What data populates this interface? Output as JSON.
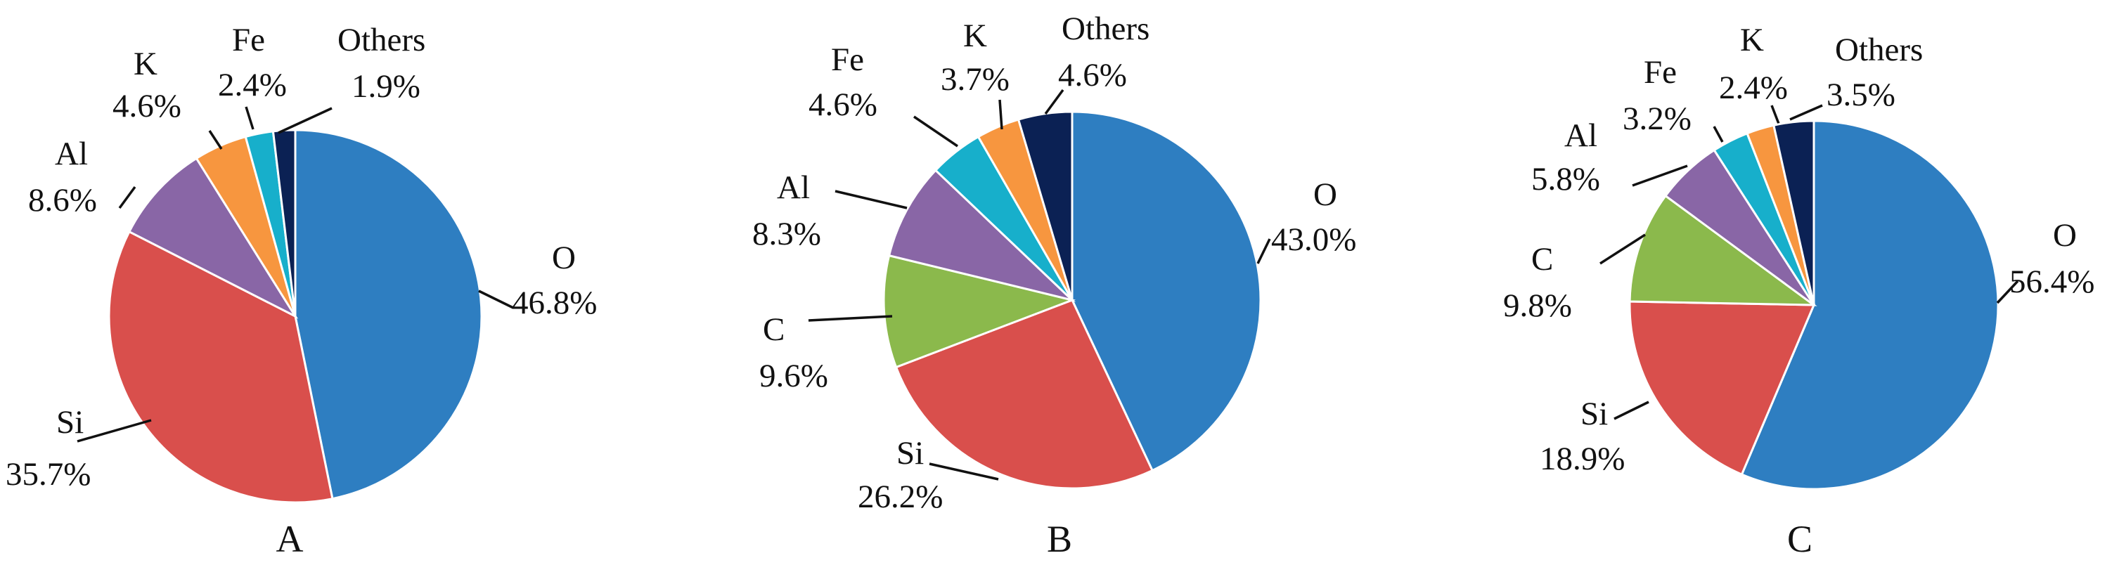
{
  "chart_data": [
    {
      "type": "pie",
      "label": "A",
      "slices": [
        {
          "name": "O",
          "value": 46.8,
          "text": "46.8%",
          "color": "#2E7EC1"
        },
        {
          "name": "Si",
          "value": 35.7,
          "text": "35.7%",
          "color": "#D94F4C"
        },
        {
          "name": "Al",
          "value": 8.6,
          "text": "8.6%",
          "color": "#8966A6"
        },
        {
          "name": "K",
          "value": 4.6,
          "text": "4.6%",
          "color": "#F7963F"
        },
        {
          "name": "Fe",
          "value": 2.4,
          "text": "2.4%",
          "color": "#17AFCB"
        },
        {
          "name": "Others",
          "value": 1.9,
          "text": "1.9%",
          "color": "#0B2154"
        }
      ]
    },
    {
      "type": "pie",
      "label": "B",
      "slices": [
        {
          "name": "O",
          "value": 43.0,
          "text": "43.0%",
          "color": "#2E7EC1"
        },
        {
          "name": "Si",
          "value": 26.2,
          "text": "26.2%",
          "color": "#D94F4C"
        },
        {
          "name": "C",
          "value": 9.6,
          "text": "9.6%",
          "color": "#8BB94C"
        },
        {
          "name": "Al",
          "value": 8.3,
          "text": "8.3%",
          "color": "#8966A6"
        },
        {
          "name": "Fe",
          "value": 4.6,
          "text": "4.6%",
          "color": "#17AFCB"
        },
        {
          "name": "K",
          "value": 3.7,
          "text": "3.7%",
          "color": "#F7963F"
        },
        {
          "name": "Others",
          "value": 4.6,
          "text": "4.6%",
          "color": "#0B2154"
        }
      ]
    },
    {
      "type": "pie",
      "label": "C",
      "slices": [
        {
          "name": "O",
          "value": 56.4,
          "text": "56.4%",
          "color": "#2E7EC1"
        },
        {
          "name": "Si",
          "value": 18.9,
          "text": "18.9%",
          "color": "#D94F4C"
        },
        {
          "name": "C",
          "value": 9.8,
          "text": "9.8%",
          "color": "#8BB94C"
        },
        {
          "name": "Al",
          "value": 5.8,
          "text": "5.8%",
          "color": "#8966A6"
        },
        {
          "name": "Fe",
          "value": 3.2,
          "text": "3.2%",
          "color": "#17AFCB"
        },
        {
          "name": "K",
          "value": 2.4,
          "text": "2.4%",
          "color": "#F7963F"
        },
        {
          "name": "Others",
          "value": 3.5,
          "text": "3.5%",
          "color": "#0B2154"
        }
      ]
    }
  ]
}
